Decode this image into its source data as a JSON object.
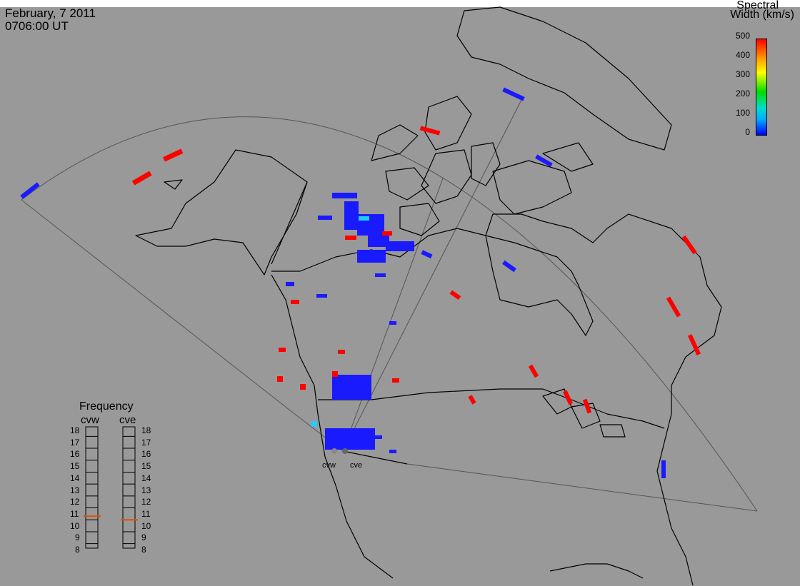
{
  "header": {
    "date": "February, 7 2011",
    "time": "0706:00 UT"
  },
  "colorbar": {
    "title_line1": "Spectral",
    "title_line2": "Width (km/s)",
    "ticks": [
      "500",
      "400",
      "300",
      "200",
      "100",
      "0"
    ],
    "min_color": "#0000ff",
    "max_color": "#ff0000"
  },
  "frequency": {
    "title": "Frequency",
    "col_left": "cvw",
    "col_right": "cve",
    "ticks": [
      "18",
      "17",
      "16",
      "15",
      "14",
      "13",
      "12",
      "11",
      "10",
      "9",
      "8"
    ],
    "cvw_value_mhz": 10.8,
    "cve_value_mhz": 10.5,
    "marker_color": "#e05000"
  },
  "sites": {
    "west": "cvw",
    "east": "cve"
  },
  "colors": {
    "background": "#999999",
    "coastline": "#000000",
    "fov": "#555555",
    "low_width": "#1a1aff",
    "high_width": "#ff0000",
    "mid_width": "#22aaff"
  }
}
